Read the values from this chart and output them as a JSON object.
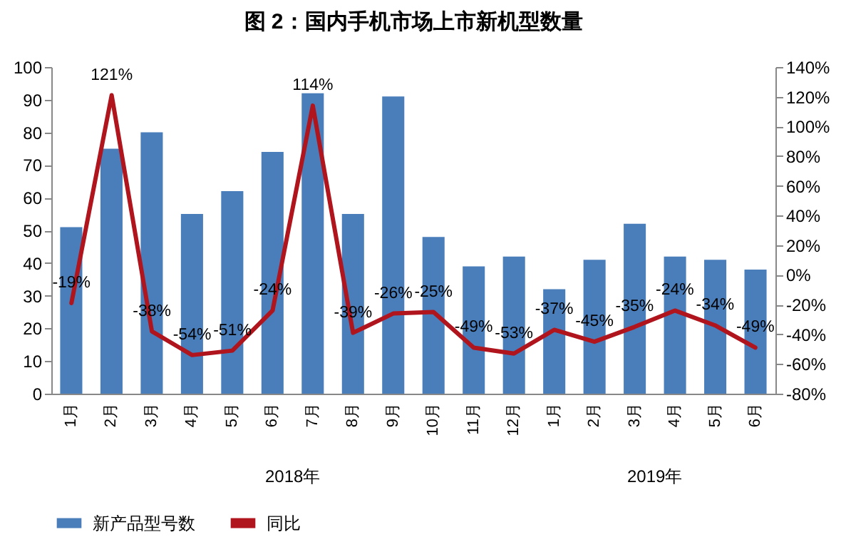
{
  "chart_data": {
    "type": "bar",
    "title": "图 2：国内手机市场上市新机型数量",
    "categories": [
      "1月",
      "2月",
      "3月",
      "4月",
      "5月",
      "6月",
      "7月",
      "8月",
      "9月",
      "10月",
      "11月",
      "12月",
      "1月",
      "2月",
      "3月",
      "4月",
      "5月",
      "6月"
    ],
    "series": [
      {
        "name": "新产品型号数",
        "color": "#4a7ebb",
        "values": [
          51,
          75,
          80,
          55,
          62,
          74,
          92,
          55,
          91,
          48,
          39,
          42,
          32,
          41,
          52,
          42,
          41,
          38
        ]
      },
      {
        "name": "同比",
        "type": "line",
        "axis": "y2",
        "color": "#b0141c",
        "values": [
          -19,
          121,
          -38,
          -54,
          -51,
          -24,
          114,
          -39,
          -26,
          -25,
          -49,
          -53,
          -37,
          -45,
          -35,
          -24,
          -34,
          -49
        ],
        "value_labels": [
          "-19%",
          "121%",
          "-38%",
          "-54%",
          "-51%",
          "-24%",
          "114%",
          "-39%",
          "-26%",
          "-25%",
          "-49%",
          "-53%",
          "-37%",
          "-45%",
          "-35%",
          "-24%",
          "-34%",
          "-49%"
        ]
      }
    ],
    "ylim": [
      0,
      100
    ],
    "yticks": [
      0,
      10,
      20,
      30,
      40,
      50,
      60,
      70,
      80,
      90,
      100
    ],
    "y2lim": [
      -80,
      140
    ],
    "y2ticks": [
      {
        "value": -80,
        "label": "-80%"
      },
      {
        "value": -60,
        "label": "-60%"
      },
      {
        "value": -40,
        "label": "-40%"
      },
      {
        "value": -20,
        "label": "-20%"
      },
      {
        "value": 0,
        "label": "0%"
      },
      {
        "value": 20,
        "label": "20%"
      },
      {
        "value": 40,
        "label": "40%"
      },
      {
        "value": 60,
        "label": "60%"
      },
      {
        "value": 80,
        "label": "80%"
      },
      {
        "value": 100,
        "label": "100%"
      },
      {
        "value": 120,
        "label": "120%"
      },
      {
        "value": 140,
        "label": "140%"
      }
    ],
    "annotations": [
      "2018年",
      "2019年"
    ],
    "legend": "bottom",
    "grid": false
  }
}
